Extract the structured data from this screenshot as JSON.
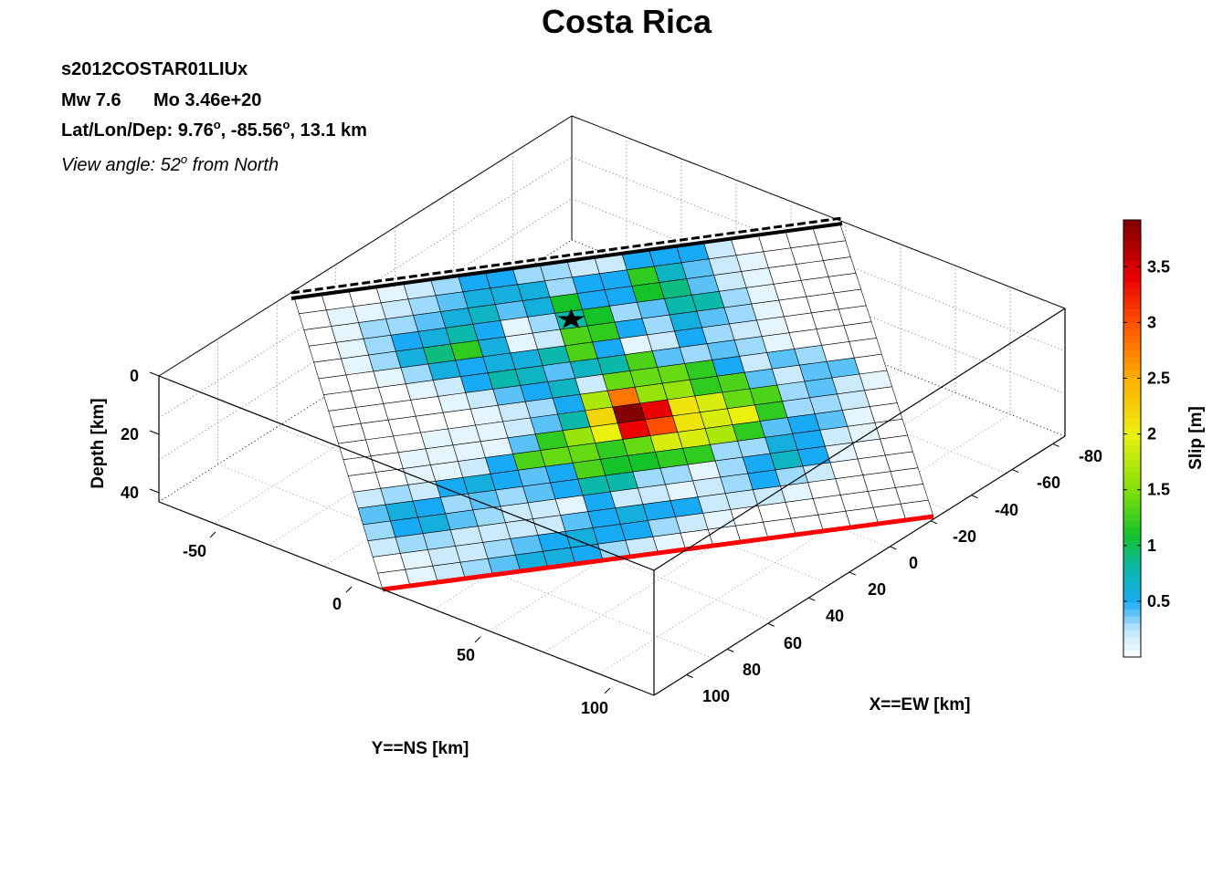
{
  "chart_data": {
    "type": "heatmap",
    "title": "Costa Rica",
    "event_id": "s2012COSTAR01LIUx",
    "magnitude_label": "Mw 7.6",
    "moment_label": "Mo 3.46e+20",
    "location_prefix": "Lat/Lon/Dep: ",
    "lat": "9.76",
    "lon": "-85.56",
    "depth_text": "13.1 km",
    "deg": "o",
    "view_prefix": "View angle:  ",
    "view_value": "52",
    "view_suffix": " from North",
    "xlabel": "X==EW [km]",
    "ylabel": "Y==NS [km]",
    "zlabel": "Depth [km]",
    "x_ticks": [
      "-80",
      "-60",
      "-40",
      "-20",
      "0",
      "20",
      "40",
      "60",
      "80",
      "100"
    ],
    "y_ticks": [
      "-50",
      "0",
      "50",
      "100"
    ],
    "z_ticks": [
      "0",
      "20",
      "40"
    ],
    "colorbar": {
      "label": "Slip [m]",
      "ticks": [
        "0.5",
        "1",
        "1.5",
        "2",
        "2.5",
        "3",
        "3.5"
      ],
      "min": 0,
      "max": 3.92,
      "tick_values": [
        0.5,
        1,
        1.5,
        2,
        2.5,
        3,
        3.5
      ]
    },
    "grid": {
      "rows": 18,
      "cols": 20,
      "slip": [
        [
          0.0,
          0.0,
          0.0,
          0.1,
          0.2,
          0.3,
          0.5,
          0.5,
          0.3,
          0.3,
          0.2,
          0.2,
          0.5,
          0.5,
          0.5,
          0.2,
          0.0,
          0.0,
          0.0,
          0.0
        ],
        [
          0.0,
          0.1,
          0.1,
          0.2,
          0.3,
          0.4,
          0.6,
          0.6,
          0.6,
          0.3,
          0.5,
          0.5,
          1.2,
          0.7,
          0.4,
          0.2,
          0.1,
          0.0,
          0.0,
          0.0
        ],
        [
          0.0,
          0.1,
          0.3,
          0.3,
          0.4,
          0.6,
          0.7,
          0.4,
          0.6,
          1.1,
          0.5,
          0.5,
          1.1,
          0.9,
          0.4,
          0.2,
          0.1,
          0.0,
          0.0,
          0.0
        ],
        [
          0.0,
          0.1,
          0.3,
          0.5,
          0.6,
          0.8,
          0.5,
          0.1,
          0.3,
          0.8,
          1.1,
          0.3,
          0.4,
          0.8,
          0.8,
          0.3,
          0.1,
          0.0,
          0.0,
          0.0
        ],
        [
          0.0,
          0.1,
          0.3,
          0.6,
          0.9,
          1.2,
          0.6,
          0.1,
          0.2,
          1.3,
          1.2,
          0.5,
          0.3,
          0.6,
          0.4,
          0.3,
          0.1,
          0.0,
          0.0,
          0.0
        ],
        [
          0.0,
          0.0,
          0.1,
          0.3,
          0.6,
          0.5,
          0.6,
          0.6,
          0.8,
          1.3,
          0.5,
          0.1,
          0.2,
          0.5,
          0.3,
          0.2,
          0.1,
          0.0,
          0.0,
          0.0
        ],
        [
          0.0,
          0.0,
          0.0,
          0.1,
          0.2,
          0.5,
          0.8,
          0.7,
          0.4,
          0.7,
          0.8,
          1.3,
          0.4,
          0.3,
          0.4,
          0.3,
          0.1,
          0.0,
          0.0,
          0.0
        ],
        [
          0.0,
          0.0,
          0.0,
          0.0,
          0.1,
          0.2,
          0.4,
          0.5,
          0.7,
          0.2,
          1.4,
          1.4,
          1.4,
          1.2,
          0.5,
          0.2,
          0.4,
          0.3,
          0.0,
          0.0
        ],
        [
          0.0,
          0.0,
          0.0,
          0.0,
          0.0,
          0.1,
          0.2,
          0.3,
          0.5,
          1.7,
          2.8,
          1.6,
          1.6,
          1.2,
          1.3,
          0.4,
          0.2,
          0.4,
          0.4,
          0.0
        ],
        [
          0.0,
          0.0,
          0.0,
          0.1,
          0.1,
          0.1,
          0.2,
          0.4,
          0.8,
          2.2,
          3.9,
          3.4,
          2.1,
          1.9,
          1.4,
          1.3,
          0.3,
          0.4,
          0.2,
          0.1
        ],
        [
          0.0,
          0.0,
          0.1,
          0.1,
          0.1,
          0.1,
          0.4,
          1.2,
          1.6,
          2.0,
          3.4,
          3.0,
          2.1,
          1.9,
          2.0,
          1.2,
          0.3,
          0.3,
          0.2,
          0.0
        ],
        [
          0.0,
          0.0,
          0.1,
          0.1,
          0.2,
          0.5,
          1.3,
          1.4,
          1.4,
          1.2,
          1.4,
          1.9,
          1.9,
          1.7,
          1.2,
          0.4,
          0.5,
          0.4,
          0.1,
          0.0
        ],
        [
          0.2,
          0.3,
          0.2,
          0.5,
          0.6,
          0.5,
          0.4,
          0.5,
          1.3,
          1.1,
          1.1,
          1.2,
          1.2,
          0.3,
          0.3,
          0.6,
          0.5,
          0.2,
          0.1,
          0.0
        ],
        [
          0.4,
          0.6,
          0.5,
          0.3,
          0.4,
          0.3,
          0.4,
          0.5,
          0.8,
          0.8,
          0.3,
          0.3,
          0.1,
          0.3,
          0.5,
          0.7,
          0.5,
          0.1,
          0.0,
          0.0
        ],
        [
          0.3,
          0.5,
          0.6,
          0.4,
          0.3,
          0.2,
          0.2,
          0.1,
          0.5,
          0.2,
          0.2,
          0.1,
          0.2,
          0.3,
          0.5,
          0.3,
          0.2,
          0.0,
          0.0,
          0.0
        ],
        [
          0.2,
          0.3,
          0.3,
          0.2,
          0.2,
          0.2,
          0.2,
          0.4,
          0.5,
          0.6,
          0.5,
          0.5,
          0.2,
          0.2,
          0.2,
          0.1,
          0.0,
          0.0,
          0.0,
          0.0
        ],
        [
          0.0,
          0.1,
          0.2,
          0.2,
          0.3,
          0.4,
          0.5,
          0.6,
          0.5,
          0.5,
          0.3,
          0.2,
          0.1,
          0.0,
          0.0,
          0.0,
          0.0,
          0.0,
          0.0,
          0.0
        ],
        [
          0.0,
          0.1,
          0.2,
          0.3,
          0.4,
          0.6,
          0.6,
          0.5,
          0.3,
          0.2,
          0.1,
          0.0,
          0.0,
          0.0,
          0.0,
          0.0,
          0.0,
          0.0,
          0.0,
          0.0
        ]
      ]
    },
    "hypocenter_cell": [
      3.5,
      9.5
    ],
    "colors": {
      "trench": "#000000",
      "bottom_edge": "#ff0000"
    }
  }
}
